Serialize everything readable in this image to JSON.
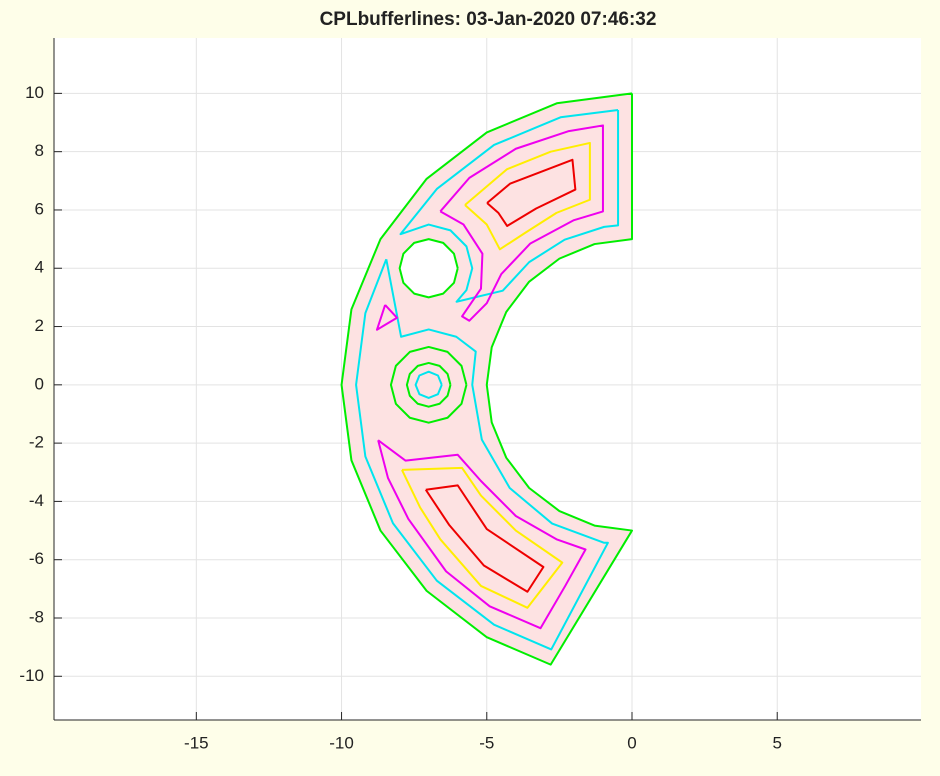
{
  "chart_data": {
    "type": "line",
    "title": "CPLbufferlines: 03-Jan-2020 07:46:32",
    "xlim": [
      -19.9,
      9.95
    ],
    "ylim": [
      -11.5,
      11.9
    ],
    "xticks": [
      -15,
      -10,
      -5,
      0,
      5
    ],
    "yticks": [
      -10,
      -8,
      -6,
      -4,
      -2,
      0,
      2,
      4,
      6,
      8,
      10
    ],
    "grid": true,
    "series": [
      {
        "color": "#00ee00",
        "fill": "#fde2e2",
        "x": [
          0,
          -2.59,
          -5,
          -7.07,
          -8.66,
          -9.66,
          -10,
          -9.66,
          -8.66,
          -7.07,
          -5,
          -2.8,
          0,
          -1.29,
          -2.5,
          -3.54,
          -4.33,
          -4.83,
          -5,
          -4.83,
          -4.33,
          -3.54,
          -2.5,
          -1.29,
          0,
          0
        ],
        "values": [
          10,
          9.66,
          8.66,
          7.07,
          5,
          2.59,
          0,
          -2.59,
          -5,
          -7.07,
          -8.66,
          -9.6,
          -5,
          -4.83,
          -4.33,
          -3.54,
          -2.5,
          -1.29,
          0,
          1.29,
          2.5,
          3.54,
          4.33,
          4.83,
          5,
          10
        ]
      },
      {
        "color": "#00ee00",
        "fill": "#ffffff",
        "x": [
          -6,
          -6.13,
          -6.5,
          -7,
          -7.5,
          -7.87,
          -8,
          -7.87,
          -7.5,
          -7,
          -6.5,
          -6.13,
          -6
        ],
        "values": [
          4,
          4.5,
          4.87,
          5,
          4.87,
          4.5,
          4,
          3.5,
          3.13,
          3,
          3.13,
          3.5,
          4
        ]
      },
      {
        "color": "#00ee00",
        "x": [
          -5.7,
          -5.87,
          -6.35,
          -7,
          -7.65,
          -8.13,
          -8.3,
          -8.13,
          -7.65,
          -7,
          -6.35,
          -5.87,
          -5.7
        ],
        "values": [
          0,
          0.65,
          1.13,
          1.3,
          1.13,
          0.65,
          0,
          -0.65,
          -1.13,
          -1.3,
          -1.13,
          -0.65,
          0
        ]
      },
      {
        "color": "#00ee00",
        "x": [
          -6.25,
          -6.35,
          -6.625,
          -7,
          -7.375,
          -7.65,
          -7.75,
          -7.65,
          -7.375,
          -7,
          -6.625,
          -6.35,
          -6.25
        ],
        "values": [
          0,
          0.375,
          0.65,
          0.75,
          0.65,
          0.375,
          0,
          -0.375,
          -0.65,
          -0.75,
          -0.65,
          -0.375,
          0
        ]
      },
      {
        "color": "#00e5ee",
        "x": [
          -6.55,
          -6.68,
          -7,
          -7.32,
          -7.45,
          -7.32,
          -7,
          -6.68,
          -6.55
        ],
        "values": [
          0,
          0.32,
          0.45,
          0.32,
          0,
          -0.32,
          -0.45,
          -0.32,
          0
        ]
      },
      {
        "color": "#00e5ee",
        "x": [
          -0.48,
          -2.46,
          -4.75,
          -6.72,
          -7.97,
          -7,
          -6.25,
          -5.7,
          -5.5,
          -5.7,
          -6.04,
          -4.45,
          -3.54,
          -2.32,
          -0.96,
          -0.48,
          -0.48
        ],
        "values": [
          9.43,
          9.18,
          8.23,
          6.72,
          5.17,
          5.5,
          5.3,
          4.75,
          4,
          3.25,
          2.85,
          3.23,
          4.21,
          4.98,
          5.42,
          5.47,
          9.43
        ]
      },
      {
        "color": "#00e5ee",
        "x": [
          -8.46,
          -9.18,
          -9.5,
          -9.18,
          -8.23,
          -6.72,
          -4.75,
          -2.78,
          -0.83,
          -0.96,
          -2.75,
          -4.21,
          -5.17,
          -5.5,
          -5.38,
          -6.05,
          -7,
          -7.95,
          -8.46
        ],
        "values": [
          4.31,
          2.46,
          0,
          -2.46,
          -4.75,
          -6.72,
          -8.23,
          -9.08,
          -5.42,
          -5.42,
          -4.76,
          -3.54,
          -1.88,
          0,
          1.14,
          1.65,
          1.9,
          1.65,
          4.31
        ]
      },
      {
        "color": "#ee00ee",
        "x": [
          -6.6,
          -5.6,
          -4,
          -2.2,
          -1,
          -1,
          -2,
          -3.5,
          -4.5,
          -5,
          -5.6,
          -5.85,
          -5.2,
          -5.15,
          -5.8,
          -6.6
        ],
        "values": [
          5.95,
          7.1,
          8.1,
          8.7,
          8.9,
          5.95,
          5.65,
          4.85,
          3.8,
          2.8,
          2.2,
          2.35,
          3.3,
          4.5,
          5.5,
          5.95
        ]
      },
      {
        "color": "#ee00ee",
        "x": [
          -8.5,
          -8.78,
          -8.09,
          -8.5
        ],
        "values": [
          2.74,
          1.89,
          2.3,
          2.74
        ]
      },
      {
        "color": "#ee00ee",
        "x": [
          -8.74,
          -7.8,
          -6,
          -5.2,
          -4,
          -2.6,
          -1.6,
          -2.3,
          -3.15,
          -4.9,
          -6.4,
          -7.7,
          -8.4,
          -8.74
        ],
        "values": [
          -1.9,
          -2.6,
          -2.4,
          -3.3,
          -4.5,
          -5.3,
          -5.65,
          -6.9,
          -8.35,
          -7.6,
          -6.4,
          -4.6,
          -3.2,
          -1.9
        ]
      },
      {
        "color": "#ffee00",
        "x": [
          -5.75,
          -4.3,
          -2.8,
          -1.45,
          -1.45,
          -2.6,
          -3.7,
          -4.55,
          -5,
          -5.75
        ],
        "values": [
          6.17,
          7.4,
          8,
          8.3,
          6.35,
          5.9,
          5.2,
          4.65,
          5.5,
          6.17
        ]
      },
      {
        "color": "#ffee00",
        "x": [
          -7.92,
          -5.85,
          -5.2,
          -4,
          -2.4,
          -3.6,
          -5.2,
          -6.6,
          -7.3,
          -7.92
        ],
        "values": [
          -2.92,
          -2.85,
          -3.8,
          -5,
          -6.1,
          -7.65,
          -6.9,
          -5.3,
          -4.2,
          -2.92
        ]
      },
      {
        "color": "#ee0000",
        "x": [
          -4.99,
          -4.2,
          -2.05,
          -1.95,
          -3.3,
          -4.3,
          -4.6,
          -4.99
        ],
        "values": [
          6.24,
          6.9,
          7.72,
          6.7,
          6.05,
          5.45,
          5.9,
          6.24
        ]
      },
      {
        "color": "#ee0000",
        "x": [
          -7.1,
          -6,
          -5,
          -3.05,
          -3.6,
          -5.1,
          -6.3,
          -7.1
        ],
        "values": [
          -3.6,
          -3.45,
          -4.95,
          -6.25,
          -7.1,
          -6.2,
          -4.8,
          -3.6
        ]
      }
    ]
  }
}
